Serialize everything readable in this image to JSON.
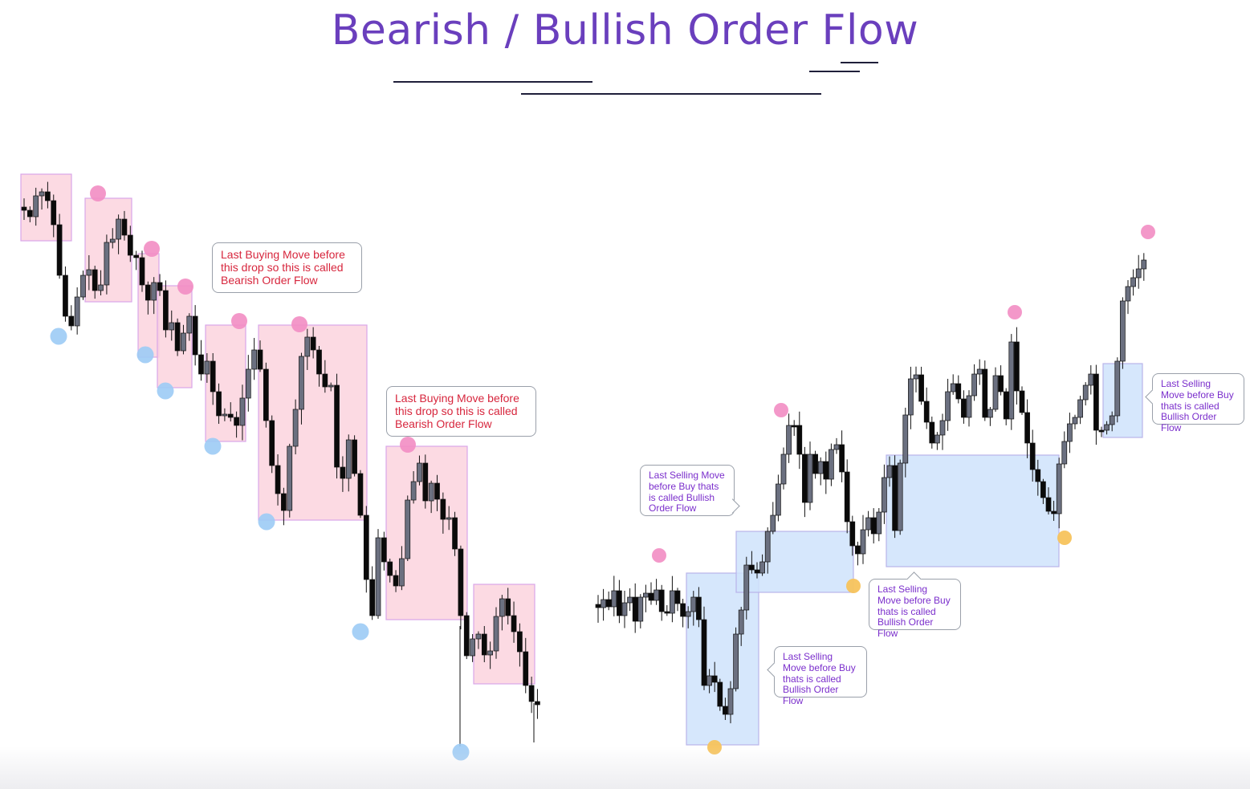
{
  "title": "Bearish / Bullish Order Flow",
  "colors": {
    "title": "#6a3fbd",
    "bear_zone_fill": "#fbd3de",
    "bear_zone_stroke": "#d9a6e8",
    "bull_zone_fill": "#cfe3fb",
    "bull_zone_stroke": "#b9b3ea",
    "swing_high": "#f28dc3",
    "swing_low_bear": "#9ccbf5",
    "swing_low_bull": "#f7c35c",
    "bull_candle": "#6b7080",
    "bear_candle": "#0a0a0a",
    "bear_note_text": "#d7263d",
    "bull_note_text": "#7b2fcc"
  },
  "annotations": {
    "bear_note_1": "Last Buying Move before this drop so this is called Bearish Order Flow",
    "bear_note_2": "Last Buying Move before this drop so this is called Bearish Order Flow",
    "bull_note_1": "Last Selling Move before Buy thats is called Bullish Order Flow",
    "bull_note_2": "Last Selling Move before Buy thats is called Bullish Order Flow",
    "bull_note_3": "Last Selling Move before Buy thats is called Bullish Order Flow",
    "bull_note_4": "Last Selling Move before Buy thats is called Bullish Order Flow"
  },
  "chart_data": {
    "type": "candlestick",
    "title": "Bearish / Bullish Order Flow",
    "xlabel": "",
    "ylabel": "",
    "axes_visible": false,
    "grid": false,
    "series": [
      {
        "trend": "bearish",
        "close_path": [
          262,
          270,
          244,
          239,
          250,
          280,
          343,
          394,
          406,
          370,
          343,
          336,
          362,
          355,
          302,
          298,
          273,
          293,
          318,
          321,
          355,
          374,
          352,
          362,
          411,
          402,
          437,
          415,
          394,
          442,
          466,
          450,
          488,
          518,
          516,
          520,
          530,
          496,
          460,
          436,
          460,
          524,
          580,
          615,
          636,
          556,
          510,
          444,
          420,
          436,
          466,
          482,
          480,
          582,
          596,
          548,
          590,
          642,
          722,
          767,
          670,
          700,
          717,
          730,
          696,
          623,
          600,
          577,
          624,
          602,
          622,
          647,
          645,
          684,
          767,
          817,
          796,
          790,
          816,
          811,
          768,
          746,
          767,
          787,
          812,
          854,
          874,
          878
        ],
        "order_blocks": 7,
        "swing_highs": 6,
        "swing_lows": 8
      },
      {
        "trend": "bullish",
        "close_path": [
          757,
          747,
          756,
          736,
          767,
          751,
          744,
          774,
          744,
          739,
          748,
          735,
          762,
          764,
          736,
          752,
          768,
          762,
          744,
          772,
          854,
          842,
          850,
          880,
          890,
          858,
          790,
          760,
          704,
          710,
          714,
          700,
          662,
          642,
          603,
          566,
          530,
          530,
          566,
          626,
          566,
          590,
          575,
          597,
          560,
          554,
          588,
          650,
          680,
          690,
          660,
          645,
          665,
          638,
          595,
          580,
          661,
          577,
          517,
          472,
          467,
          500,
          526,
          552,
          542,
          524,
          488,
          478,
          497,
          520,
          493,
          466,
          460,
          520,
          510,
          468,
          488,
          522,
          426,
          487,
          514,
          552,
          585,
          600,
          620,
          637,
          640,
          578,
          550,
          528,
          520,
          498,
          480,
          466,
          536,
          536,
          529,
          518,
          450,
          375,
          357,
          346,
          335,
          324
        ],
        "order_blocks": 4,
        "swing_highs": 4,
        "swing_lows": 3
      }
    ]
  }
}
